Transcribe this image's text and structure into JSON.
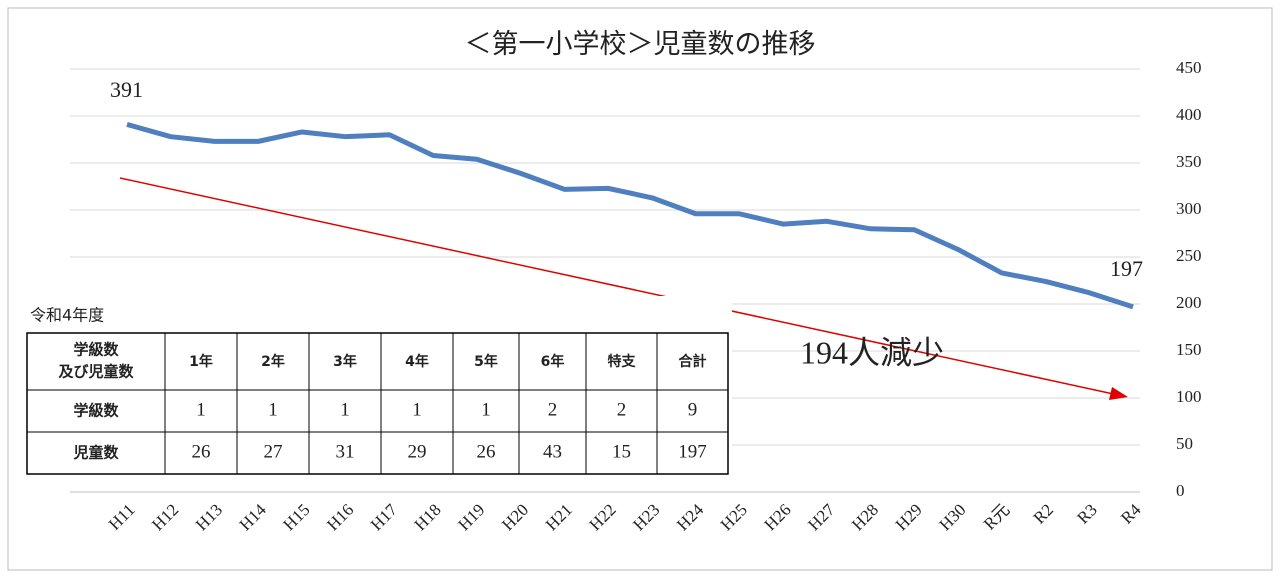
{
  "chart_data": {
    "type": "line",
    "title": "＜第一小学校＞児童数の推移",
    "categories": [
      "H11",
      "H12",
      "H13",
      "H14",
      "H15",
      "H16",
      "H17",
      "H18",
      "H19",
      "H20",
      "H21",
      "H22",
      "H23",
      "H24",
      "H25",
      "H26",
      "H27",
      "H28",
      "H29",
      "H30",
      "R元",
      "R2",
      "R3",
      "R4"
    ],
    "series": [
      {
        "name": "児童数",
        "color": "#4f7fbf",
        "values": [
          391,
          378,
          373,
          373,
          383,
          378,
          380,
          358,
          354,
          339,
          322,
          323,
          313,
          296,
          296,
          285,
          288,
          280,
          279,
          258,
          233,
          224,
          212,
          197
        ]
      }
    ],
    "ylim": [
      0,
      450
    ],
    "yticks": [
      0,
      50,
      100,
      150,
      200,
      250,
      300,
      350,
      400,
      450
    ],
    "grid": true,
    "annotations": [
      "391",
      "197",
      "194人減少"
    ]
  },
  "table": {
    "title": "令和4年度",
    "corner": [
      "学級数",
      "及び児童数"
    ],
    "columns": [
      "1年",
      "2年",
      "3年",
      "4年",
      "5年",
      "6年",
      "特支",
      "合計"
    ],
    "rows": [
      [
        "学級数",
        "1",
        "1",
        "1",
        "1",
        "1",
        "2",
        "2",
        "9"
      ],
      [
        "児童数",
        "26",
        "27",
        "31",
        "29",
        "26",
        "43",
        "15",
        "197"
      ]
    ]
  }
}
